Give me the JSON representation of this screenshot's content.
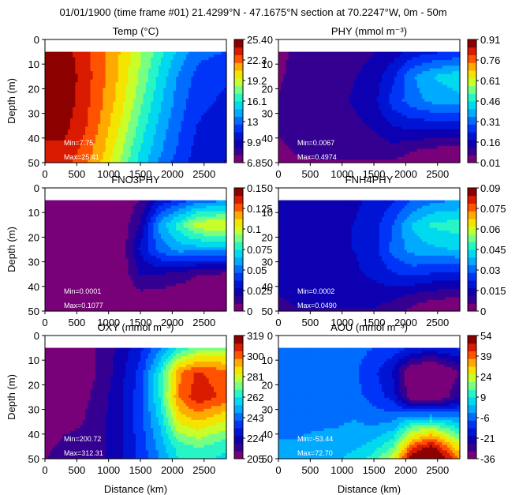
{
  "title": "01/01/1900 (time frame #01) 21.4299°N - 47.1675°N section at 70.2247°W, 0m - 50m",
  "chart_data": [
    {
      "type": "heatmap",
      "id": "temp",
      "title": "Temp (°C)",
      "ylabel": "Depth (m)",
      "xlabel": "",
      "xlim": [
        0,
        2850
      ],
      "ylim": [
        50,
        0
      ],
      "data_depth_range": [
        5,
        50
      ],
      "xticks": [
        "0",
        "500",
        "1000",
        "1500",
        "2000",
        "2500"
      ],
      "yticks": [
        "0",
        "10",
        "20",
        "30",
        "40",
        "50"
      ],
      "colorbar_ticks": [
        "25.4",
        "22.3",
        "19.2",
        "16.1",
        "13",
        "9.9",
        "6.8"
      ],
      "vmin": 6.8,
      "vmax": 25.4,
      "min_label": "Min=7.75",
      "max_label": "Max=25.41",
      "field": {
        "x": [
          0,
          300,
          600,
          900,
          1200,
          1500,
          1800,
          2100,
          2400,
          2850
        ],
        "depth": [
          5,
          15,
          25,
          35,
          45,
          50
        ],
        "values": [
          [
            25.0,
            24.8,
            23.6,
            22.2,
            20.6,
            18.6,
            16.6,
            14.6,
            13.0,
            12.6
          ],
          [
            25.3,
            25.1,
            23.8,
            22.2,
            20.4,
            18.2,
            15.8,
            13.6,
            12.2,
            11.6
          ],
          [
            25.2,
            25.0,
            23.7,
            22.0,
            20.0,
            17.6,
            15.2,
            13.2,
            11.8,
            11.2
          ],
          [
            24.8,
            24.6,
            23.4,
            21.6,
            19.4,
            16.8,
            14.6,
            12.8,
            11.4,
            10.8
          ],
          [
            23.8,
            24.0,
            22.8,
            21.0,
            18.6,
            16.0,
            14.0,
            12.4,
            11.0,
            10.4
          ],
          [
            23.2,
            23.6,
            22.4,
            20.6,
            18.2,
            15.6,
            13.6,
            12.0,
            10.8,
            10.2
          ]
        ]
      }
    },
    {
      "type": "heatmap",
      "id": "phy",
      "title": "PHY (mmol m⁻³)",
      "ylabel": "",
      "xlabel": "",
      "xlim": [
        0,
        2850
      ],
      "ylim": [
        50,
        0
      ],
      "data_depth_range": [
        5,
        50
      ],
      "xticks": [
        "0",
        "500",
        "1000",
        "1500",
        "2000",
        "2500"
      ],
      "yticks": [
        "0",
        "10",
        "20",
        "30",
        "40",
        "50"
      ],
      "colorbar_ticks": [
        "0.91",
        "0.76",
        "0.61",
        "0.46",
        "0.31",
        "0.16",
        "0.01"
      ],
      "vmin": 0.01,
      "vmax": 0.91,
      "min_label": "Min=0.0067",
      "max_label": "Max=0.4974",
      "field": {
        "x": [
          0,
          300,
          600,
          900,
          1200,
          1500,
          1800,
          2100,
          2400,
          2850
        ],
        "depth": [
          5,
          15,
          25,
          35,
          45,
          50
        ],
        "values": [
          [
            0.06,
            0.07,
            0.08,
            0.09,
            0.1,
            0.12,
            0.15,
            0.2,
            0.22,
            0.24
          ],
          [
            0.06,
            0.08,
            0.09,
            0.1,
            0.12,
            0.15,
            0.22,
            0.34,
            0.4,
            0.45
          ],
          [
            0.07,
            0.08,
            0.1,
            0.11,
            0.13,
            0.16,
            0.26,
            0.32,
            0.36,
            0.38
          ],
          [
            0.07,
            0.08,
            0.09,
            0.1,
            0.11,
            0.13,
            0.18,
            0.2,
            0.2,
            0.2
          ],
          [
            0.06,
            0.07,
            0.08,
            0.08,
            0.08,
            0.09,
            0.1,
            0.07,
            0.05,
            0.04
          ],
          [
            0.05,
            0.06,
            0.06,
            0.06,
            0.06,
            0.06,
            0.06,
            0.03,
            0.02,
            0.01
          ]
        ]
      }
    },
    {
      "type": "heatmap",
      "id": "fno3phy",
      "title": "FNO3PHY",
      "ylabel": "Depth (m)",
      "xlabel": "",
      "xlim": [
        0,
        2850
      ],
      "ylim": [
        50,
        0
      ],
      "data_depth_range": [
        5,
        50
      ],
      "xticks": [
        "0",
        "500",
        "1000",
        "1500",
        "2000",
        "2500"
      ],
      "yticks": [
        "0",
        "10",
        "20",
        "30",
        "40",
        "50"
      ],
      "colorbar_ticks": [
        "0.15",
        "0.125",
        "0.1",
        "0.075",
        "0.05",
        "0.025",
        "0"
      ],
      "vmin": 0,
      "vmax": 0.15,
      "min_label": "Min=0.0001",
      "max_label": "Max=0.1077",
      "field": {
        "x": [
          0,
          300,
          600,
          900,
          1200,
          1500,
          1800,
          2100,
          2400,
          2850
        ],
        "depth": [
          5,
          15,
          25,
          35,
          45,
          50
        ],
        "values": [
          [
            0.001,
            0.001,
            0.001,
            0.001,
            0.002,
            0.01,
            0.03,
            0.04,
            0.05,
            0.055
          ],
          [
            0.001,
            0.001,
            0.001,
            0.001,
            0.002,
            0.02,
            0.06,
            0.08,
            0.1,
            0.105
          ],
          [
            0.001,
            0.001,
            0.001,
            0.001,
            0.003,
            0.03,
            0.05,
            0.06,
            0.06,
            0.06
          ],
          [
            0.001,
            0.001,
            0.001,
            0.001,
            0.002,
            0.02,
            0.02,
            0.015,
            0.01,
            0.008
          ],
          [
            0.001,
            0.001,
            0.001,
            0.001,
            0.001,
            0.004,
            0.002,
            0.001,
            0.001,
            0.001
          ],
          [
            0.001,
            0.001,
            0.001,
            0.001,
            0.001,
            0.001,
            0.001,
            0.001,
            0.001,
            0.001
          ]
        ]
      }
    },
    {
      "type": "heatmap",
      "id": "fnh4phy",
      "title": "FNH4PHY",
      "ylabel": "",
      "xlabel": "",
      "xlim": [
        0,
        2850
      ],
      "ylim": [
        50,
        0
      ],
      "data_depth_range": [
        5,
        50
      ],
      "xticks": [
        "0",
        "500",
        "1000",
        "1500",
        "2000",
        "2500"
      ],
      "yticks": [
        "0",
        "10",
        "20",
        "30",
        "40",
        "50"
      ],
      "colorbar_ticks": [
        "0.09",
        "0.075",
        "0.06",
        "0.045",
        "0.03",
        "0.015",
        "0"
      ],
      "vmin": 0,
      "vmax": 0.09,
      "min_label": "Min=0.0002",
      "max_label": "Max=0.0490",
      "field": {
        "x": [
          0,
          300,
          600,
          900,
          1200,
          1500,
          1800,
          2100,
          2400,
          2850
        ],
        "depth": [
          5,
          15,
          25,
          35,
          45,
          50
        ],
        "values": [
          [
            0.012,
            0.013,
            0.014,
            0.015,
            0.016,
            0.018,
            0.022,
            0.028,
            0.032,
            0.034
          ],
          [
            0.013,
            0.014,
            0.015,
            0.016,
            0.017,
            0.02,
            0.028,
            0.04,
            0.046,
            0.048
          ],
          [
            0.013,
            0.014,
            0.015,
            0.016,
            0.017,
            0.02,
            0.03,
            0.036,
            0.038,
            0.04
          ],
          [
            0.013,
            0.014,
            0.014,
            0.015,
            0.016,
            0.018,
            0.022,
            0.024,
            0.022,
            0.02
          ],
          [
            0.011,
            0.012,
            0.012,
            0.012,
            0.013,
            0.013,
            0.012,
            0.008,
            0.006,
            0.005
          ],
          [
            0.01,
            0.011,
            0.011,
            0.011,
            0.011,
            0.011,
            0.008,
            0.004,
            0.002,
            0.001
          ]
        ]
      }
    },
    {
      "type": "heatmap",
      "id": "oxy",
      "title": "OXY (mmol m⁻³)",
      "ylabel": "Depth (m)",
      "xlabel": "Distance (km)",
      "xlim": [
        0,
        2850
      ],
      "ylim": [
        50,
        0
      ],
      "data_depth_range": [
        5,
        50
      ],
      "xticks": [
        "0",
        "500",
        "1000",
        "1500",
        "2000",
        "2500"
      ],
      "yticks": [
        "0",
        "10",
        "20",
        "30",
        "40",
        "50"
      ],
      "colorbar_ticks": [
        "319",
        "300",
        "281",
        "262",
        "243",
        "224",
        "205"
      ],
      "vmin": 205,
      "vmax": 319,
      "min_label": "Min=200.72",
      "max_label": "Max=312.31",
      "field": {
        "x": [
          0,
          300,
          600,
          900,
          1200,
          1500,
          1800,
          2100,
          2400,
          2850
        ],
        "depth": [
          5,
          15,
          25,
          35,
          45,
          50
        ],
        "values": [
          [
            204,
            205,
            208,
            214,
            222,
            232,
            246,
            262,
            272,
            274
          ],
          [
            204,
            204,
            208,
            214,
            224,
            236,
            262,
            296,
            306,
            300
          ],
          [
            204,
            205,
            210,
            216,
            226,
            238,
            262,
            298,
            310,
            302
          ],
          [
            206,
            210,
            212,
            218,
            226,
            238,
            256,
            284,
            290,
            282
          ],
          [
            210,
            214,
            214,
            218,
            226,
            236,
            250,
            266,
            270,
            264
          ],
          [
            212,
            216,
            216,
            218,
            226,
            236,
            248,
            262,
            264,
            260
          ]
        ]
      }
    },
    {
      "type": "heatmap",
      "id": "aou",
      "title": "AOU (mmol m⁻³)",
      "ylabel": "",
      "xlabel": "Distance (km)",
      "xlim": [
        0,
        2850
      ],
      "ylim": [
        50,
        0
      ],
      "data_depth_range": [
        5,
        50
      ],
      "xticks": [
        "0",
        "500",
        "1000",
        "1500",
        "2000",
        "2500"
      ],
      "yticks": [
        "0",
        "10",
        "20",
        "30",
        "40",
        "50"
      ],
      "colorbar_ticks": [
        "54",
        "39",
        "24",
        "9",
        "-6",
        "-21",
        "-36"
      ],
      "vmin": -36,
      "vmax": 54,
      "min_label": "Min=-53.44",
      "max_label": "Max=72.70",
      "field": {
        "x": [
          0,
          300,
          600,
          900,
          1200,
          1500,
          1800,
          2100,
          2400,
          2850
        ],
        "depth": [
          5,
          15,
          25,
          35,
          45,
          50
        ],
        "values": [
          [
            -5,
            -5,
            -5,
            -5,
            -6,
            -8,
            -10,
            -14,
            -16,
            -12
          ],
          [
            -5,
            -5,
            -5,
            -5,
            -7,
            -12,
            -20,
            -38,
            -42,
            -30
          ],
          [
            -4,
            -4,
            -4,
            -5,
            -6,
            -10,
            -16,
            -36,
            -40,
            -24
          ],
          [
            -3,
            -3,
            -3,
            -3,
            -2,
            -4,
            -2,
            8,
            10,
            2
          ],
          [
            -2,
            -2,
            -1,
            0,
            2,
            6,
            14,
            40,
            50,
            26
          ],
          [
            -1,
            -1,
            0,
            2,
            6,
            12,
            24,
            54,
            64,
            36
          ]
        ]
      }
    }
  ]
}
